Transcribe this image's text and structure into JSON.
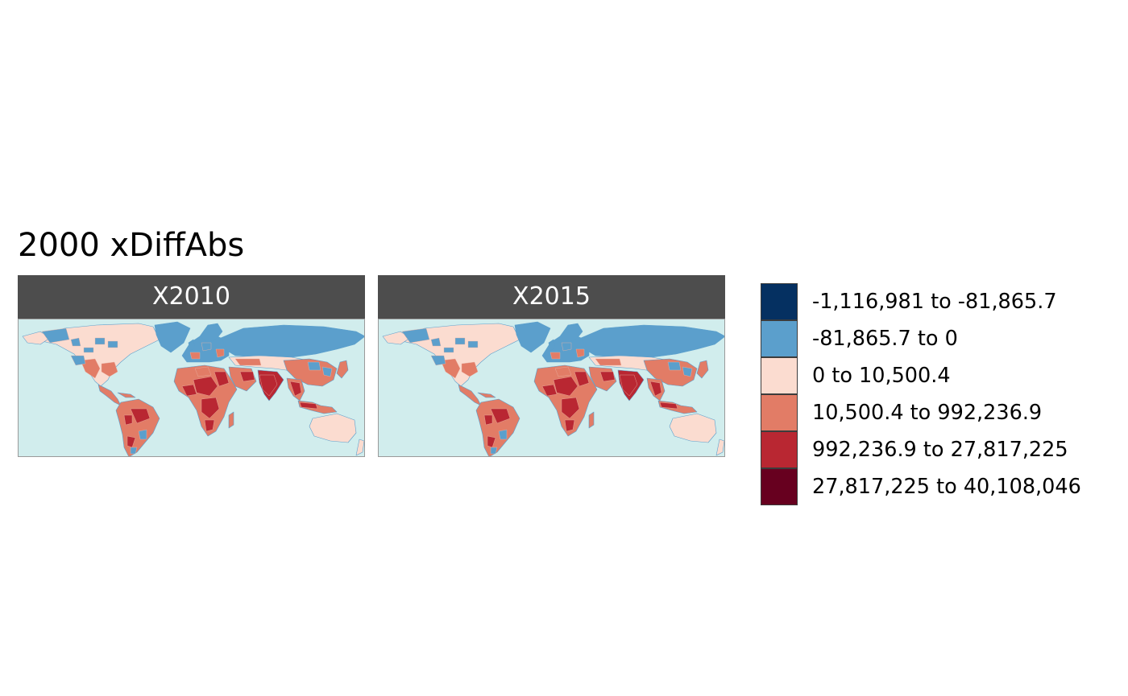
{
  "title": "2000 xDiffAbs",
  "panels": [
    {
      "label": "X2010"
    },
    {
      "label": "X2015"
    }
  ],
  "colors": {
    "ocean": "#d1eded",
    "strip": "#4d4d4d",
    "border": "#9a9a9a"
  },
  "legend": {
    "items": [
      {
        "label": "-1,116,981 to -81,865.7",
        "color": "#053061"
      },
      {
        "label": "-81,865.7 to 0",
        "color": "#5b9fcc"
      },
      {
        "label": "0 to 10,500.4",
        "color": "#fbdcd0"
      },
      {
        "label": "10,500.4 to 992,236.9",
        "color": "#e27c66"
      },
      {
        "label": "992,236.9 to 27,817,225",
        "color": "#b92732"
      },
      {
        "label": "27,817,225 to 40,108,046",
        "color": "#67001f"
      }
    ]
  }
}
